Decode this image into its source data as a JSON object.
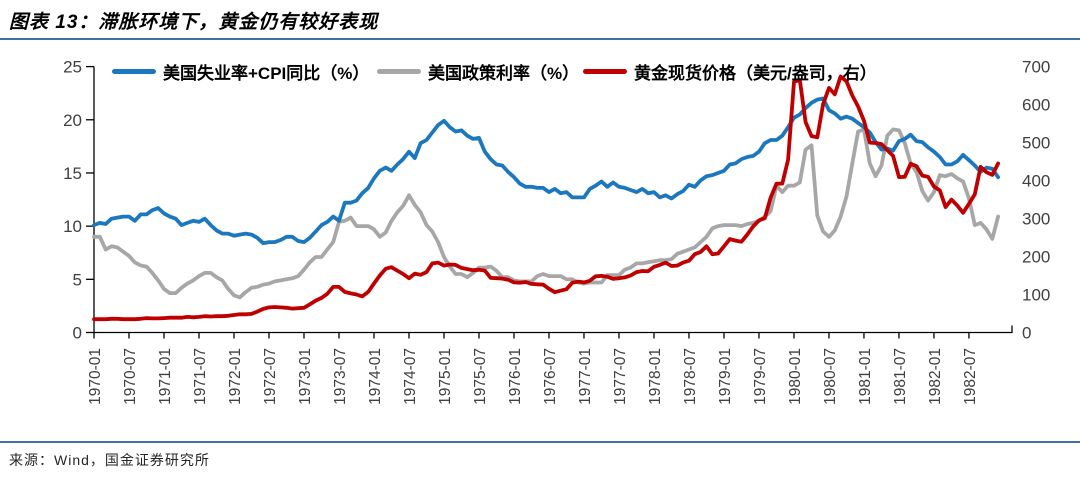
{
  "header": {
    "title": "图表 13：滞胀环境下，黄金仍有较好表现"
  },
  "source": {
    "label": "来源：Wind，国金证券研究所"
  },
  "colors": {
    "blue": "#1B78BE",
    "gray": "#A7A7A7",
    "red": "#C00000",
    "rule": "#41719C",
    "axis": "#000000",
    "tick_text": "#404040"
  },
  "chart_data": {
    "type": "line",
    "title": "滞胀环境下，黄金仍有较好表现",
    "x_start": "1970-01",
    "x_freq": "monthly",
    "x_tick_labels": [
      "1970-01",
      "1970-07",
      "1971-01",
      "1971-07",
      "1972-01",
      "1972-07",
      "1973-01",
      "1973-07",
      "1974-01",
      "1974-07",
      "1975-01",
      "1975-07",
      "1976-01",
      "1976-07",
      "1977-01",
      "1977-07",
      "1978-01",
      "1978-07",
      "1979-01",
      "1979-07",
      "1980-01",
      "1980-07",
      "1981-01",
      "1981-07",
      "1982-01",
      "1982-07"
    ],
    "left_axis": {
      "min": 0,
      "max": 25,
      "ticks": [
        0,
        5,
        10,
        15,
        20,
        25
      ]
    },
    "right_axis": {
      "min": 0,
      "max": 700,
      "ticks": [
        0,
        100,
        200,
        300,
        400,
        500,
        600,
        700
      ]
    },
    "grid": false,
    "legend_position": "top",
    "series": [
      {
        "name": "美国失业率+CPI同比（%）",
        "axis": "left",
        "color": "#1B78BE",
        "values": [
          10.1,
          10.3,
          10.2,
          10.7,
          10.8,
          10.9,
          10.9,
          10.5,
          11.1,
          11.1,
          11.5,
          11.7,
          11.2,
          10.9,
          10.7,
          10.1,
          10.3,
          10.5,
          10.4,
          10.7,
          10.1,
          9.6,
          9.3,
          9.3,
          9.1,
          9.2,
          9.3,
          9.2,
          8.9,
          8.4,
          8.5,
          8.5,
          8.7,
          9.0,
          9.0,
          8.6,
          8.5,
          8.9,
          9.5,
          10.1,
          10.4,
          10.9,
          10.5,
          12.2,
          12.2,
          12.4,
          13.1,
          13.6,
          14.5,
          15.2,
          15.5,
          15.2,
          15.8,
          16.3,
          17.0,
          16.4,
          17.8,
          18.1,
          18.8,
          19.5,
          19.9,
          19.3,
          18.9,
          19.0,
          18.5,
          18.2,
          18.3,
          17.0,
          16.3,
          15.8,
          15.7,
          15.1,
          14.6,
          14.0,
          13.7,
          13.7,
          13.6,
          13.6,
          13.2,
          13.5,
          13.1,
          13.2,
          12.7,
          12.7,
          12.7,
          13.5,
          13.8,
          14.2,
          13.7,
          14.1,
          13.7,
          13.6,
          13.4,
          13.2,
          13.5,
          13.1,
          13.2,
          12.7,
          12.9,
          12.6,
          13.0,
          13.3,
          13.9,
          13.7,
          14.3,
          14.7,
          14.8,
          15.0,
          15.2,
          15.8,
          15.9,
          16.3,
          16.5,
          16.6,
          17.0,
          17.8,
          18.1,
          18.1,
          18.5,
          19.3,
          20.2,
          20.5,
          21.1,
          21.6,
          21.9,
          22.0,
          20.9,
          20.6,
          20.1,
          20.3,
          20.1,
          19.7,
          19.3,
          18.8,
          17.9,
          17.2,
          17.3,
          17.1,
          18.0,
          18.2,
          18.6,
          18.0,
          17.9,
          17.4,
          17.0,
          16.5,
          15.8,
          15.8,
          16.1,
          16.7,
          16.2,
          15.7,
          15.1,
          15.5,
          15.4,
          14.6
        ]
      },
      {
        "name": "美国政策利率（%）",
        "axis": "left",
        "color": "#A7A7A7",
        "values": [
          9.0,
          9.0,
          7.8,
          8.1,
          8.0,
          7.6,
          7.2,
          6.6,
          6.3,
          6.2,
          5.6,
          4.9,
          4.1,
          3.7,
          3.7,
          4.2,
          4.6,
          4.9,
          5.3,
          5.6,
          5.6,
          5.2,
          4.9,
          4.1,
          3.5,
          3.3,
          3.8,
          4.2,
          4.3,
          4.5,
          4.6,
          4.8,
          4.9,
          5.0,
          5.1,
          5.3,
          5.9,
          6.6,
          7.1,
          7.1,
          7.8,
          8.5,
          10.4,
          10.5,
          10.8,
          10.0,
          10.0,
          10.0,
          9.7,
          9.0,
          9.4,
          10.5,
          11.3,
          11.9,
          12.9,
          12.0,
          11.3,
          10.1,
          9.5,
          8.5,
          7.1,
          6.2,
          5.5,
          5.5,
          5.2,
          5.6,
          6.1,
          6.1,
          6.2,
          5.8,
          5.2,
          5.2,
          4.9,
          4.8,
          4.8,
          4.8,
          5.3,
          5.5,
          5.3,
          5.3,
          5.3,
          5.0,
          5.0,
          4.7,
          4.6,
          4.7,
          4.7,
          4.7,
          5.4,
          5.4,
          5.4,
          5.9,
          6.1,
          6.5,
          6.5,
          6.6,
          6.7,
          6.8,
          6.8,
          6.9,
          7.4,
          7.6,
          7.8,
          8.0,
          8.5,
          9.0,
          9.8,
          10.0,
          10.1,
          10.1,
          10.1,
          10.0,
          10.2,
          10.3,
          10.5,
          10.9,
          11.4,
          13.8,
          13.2,
          13.8,
          13.8,
          14.1,
          17.2,
          17.6,
          11.0,
          9.5,
          9.0,
          9.6,
          10.9,
          12.8,
          15.9,
          18.9,
          19.1,
          15.9,
          14.7,
          15.7,
          18.5,
          19.1,
          19.0,
          17.8,
          15.9,
          15.1,
          13.3,
          12.4,
          13.2,
          14.8,
          14.7,
          14.9,
          14.5,
          14.2,
          12.6,
          10.1,
          10.3,
          9.7,
          8.8,
          10.9
        ]
      },
      {
        "name": "黄金现货价格（美元/盎司，右）",
        "axis": "right",
        "color": "#C00000",
        "values": [
          35,
          35,
          35,
          36,
          36,
          35,
          35,
          35,
          36,
          38,
          37,
          37,
          38,
          39,
          39,
          39,
          41,
          40,
          41,
          43,
          42,
          43,
          43,
          44,
          46,
          48,
          48,
          49,
          55,
          62,
          66,
          67,
          66,
          65,
          63,
          64,
          65,
          74,
          84,
          91,
          102,
          120,
          120,
          107,
          103,
          100,
          95,
          107,
          129,
          150,
          168,
          172,
          163,
          154,
          143,
          155,
          152,
          159,
          182,
          184,
          176,
          179,
          178,
          170,
          167,
          164,
          165,
          163,
          144,
          143,
          142,
          139,
          132,
          131,
          133,
          128,
          127,
          126,
          115,
          106,
          110,
          114,
          131,
          134,
          132,
          136,
          148,
          149,
          147,
          141,
          143,
          145,
          150,
          159,
          162,
          161,
          173,
          178,
          184,
          175,
          176,
          184,
          189,
          206,
          212,
          227,
          206,
          208,
          227,
          246,
          242,
          239,
          258,
          279,
          295,
          301,
          355,
          392,
          392,
          455,
          660,
          665,
          554,
          517,
          514,
          601,
          644,
          627,
          674,
          661,
          624,
          595,
          557,
          500,
          499,
          496,
          480,
          465,
          409,
          410,
          444,
          438,
          413,
          410,
          384,
          374,
          330,
          350,
          334,
          315,
          339,
          364,
          436,
          422,
          415,
          445
        ]
      }
    ]
  }
}
